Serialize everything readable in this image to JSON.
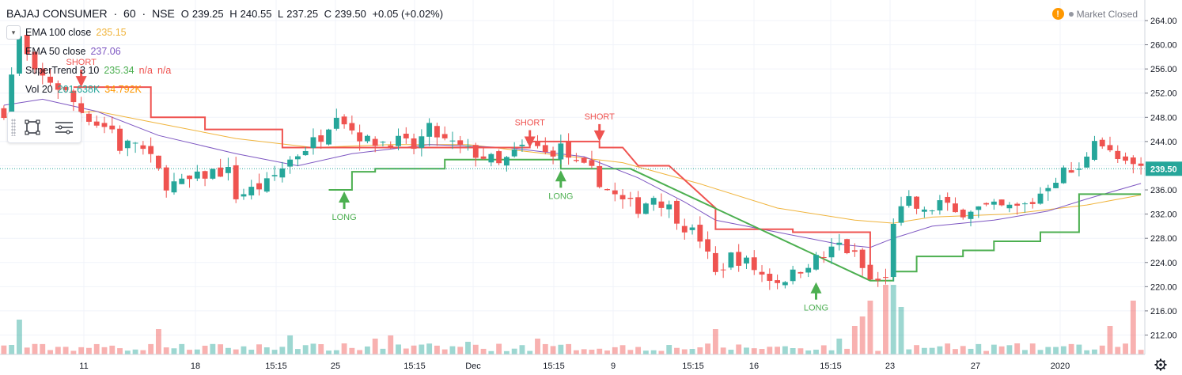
{
  "header": {
    "symbol": "BAJAJ CONSUMER",
    "interval": "60",
    "exchange": "NSE",
    "sep": "·",
    "open_label": "O",
    "open": "239.25",
    "high_label": "H",
    "high": "240.55",
    "low_label": "L",
    "low": "237.25",
    "close_label": "C",
    "close": "239.50",
    "change": "+0.05 (+0.02%)"
  },
  "indicators": [
    {
      "name": "EMA 100 close",
      "values": [
        "235.15"
      ],
      "colors": [
        "#f0b43c"
      ]
    },
    {
      "name": "EMA 50 close",
      "values": [
        "237.06"
      ],
      "colors": [
        "#7e57c2"
      ]
    },
    {
      "name": "SuperTrend 3 10",
      "values": [
        "235.34",
        "n/a",
        "n/a"
      ],
      "colors": [
        "#4caf50",
        "#ef5350",
        "#ef5350"
      ]
    },
    {
      "name": "Vol 20",
      "values": [
        "201.638K",
        "34.792K"
      ],
      "colors": [
        "#26a69a",
        "#ff9800"
      ]
    }
  ],
  "status": {
    "icon": "warning-icon",
    "label": "Market Closed"
  },
  "toolbar": {
    "items": [
      {
        "icon": "rectangle-icon"
      },
      {
        "icon": "lines-icon"
      }
    ]
  },
  "chart_data": {
    "type": "candlestick",
    "title": "BAJAJ CONSUMER · 60 · NSE",
    "ylim": [
      212,
      265
    ],
    "yticks": [
      "264.00",
      "260.00",
      "256.00",
      "252.00",
      "248.00",
      "244.00",
      "236.00",
      "232.00",
      "228.00",
      "224.00",
      "220.00",
      "216.00",
      "212.00"
    ],
    "last_price": "239.50",
    "xticks": [
      "11",
      "18",
      "15:15",
      "25",
      "15:15",
      "Dec",
      "15:15",
      "9",
      "15:15",
      "16",
      "15:15",
      "23",
      "27",
      "2020"
    ],
    "price_path": [
      [
        0,
        249
      ],
      [
        2,
        261
      ],
      [
        4,
        255
      ],
      [
        6,
        254
      ],
      [
        8,
        252
      ],
      [
        10,
        249
      ],
      [
        12,
        247
      ],
      [
        14,
        246
      ],
      [
        15,
        243
      ],
      [
        17,
        244
      ],
      [
        19,
        241
      ],
      [
        21,
        237
      ],
      [
        23,
        237
      ],
      [
        25,
        238
      ],
      [
        27,
        239
      ],
      [
        29,
        239
      ],
      [
        30,
        235
      ],
      [
        32,
        236
      ],
      [
        34,
        237
      ],
      [
        37,
        241
      ],
      [
        39,
        243
      ],
      [
        41,
        245
      ],
      [
        43,
        249
      ],
      [
        45,
        246
      ],
      [
        47,
        244
      ],
      [
        49,
        244
      ],
      [
        51,
        244
      ],
      [
        53,
        243
      ],
      [
        55,
        246
      ],
      [
        57,
        244
      ],
      [
        59,
        243
      ],
      [
        61,
        242
      ],
      [
        63,
        241
      ],
      [
        64,
        240
      ],
      [
        66,
        242
      ],
      [
        68,
        244
      ],
      [
        70,
        242
      ],
      [
        72,
        243
      ],
      [
        74,
        240
      ],
      [
        76,
        239
      ],
      [
        78,
        236
      ],
      [
        80,
        234
      ],
      [
        82,
        233
      ],
      [
        84,
        235
      ],
      [
        86,
        233
      ],
      [
        88,
        230
      ],
      [
        90,
        228
      ],
      [
        92,
        222
      ],
      [
        94,
        225
      ],
      [
        96,
        224
      ],
      [
        98,
        222
      ],
      [
        100,
        221
      ],
      [
        102,
        222
      ],
      [
        104,
        224
      ],
      [
        106,
        225
      ],
      [
        108,
        227
      ],
      [
        110,
        225
      ],
      [
        112,
        221
      ],
      [
        114,
        221
      ],
      [
        115,
        231
      ],
      [
        117,
        234
      ],
      [
        119,
        232
      ],
      [
        121,
        234
      ],
      [
        123,
        232
      ],
      [
        125,
        233
      ],
      [
        127,
        233
      ],
      [
        129,
        233
      ],
      [
        131,
        233
      ],
      [
        133,
        234
      ],
      [
        135,
        237
      ],
      [
        137,
        239
      ],
      [
        139,
        239
      ],
      [
        141,
        245
      ],
      [
        143,
        242
      ],
      [
        145,
        240
      ],
      [
        147,
        239.5
      ]
    ],
    "ema100": [
      [
        0,
        248
      ],
      [
        12,
        249
      ],
      [
        20,
        247
      ],
      [
        30,
        244.5
      ],
      [
        40,
        243
      ],
      [
        50,
        243.5
      ],
      [
        60,
        243.5
      ],
      [
        70,
        242
      ],
      [
        80,
        240.5
      ],
      [
        90,
        237
      ],
      [
        100,
        233
      ],
      [
        110,
        231
      ],
      [
        115,
        230.5
      ],
      [
        120,
        231.5
      ],
      [
        130,
        232
      ],
      [
        140,
        233.5
      ],
      [
        147,
        235.15
      ]
    ],
    "ema50": [
      [
        0,
        250
      ],
      [
        5,
        251
      ],
      [
        12,
        249
      ],
      [
        20,
        245
      ],
      [
        30,
        242
      ],
      [
        38,
        240
      ],
      [
        45,
        242
      ],
      [
        55,
        243.5
      ],
      [
        65,
        243
      ],
      [
        75,
        241.5
      ],
      [
        82,
        238
      ],
      [
        88,
        234
      ],
      [
        92,
        231
      ],
      [
        100,
        229
      ],
      [
        108,
        227
      ],
      [
        112,
        226.5
      ],
      [
        115,
        228
      ],
      [
        120,
        230
      ],
      [
        128,
        231
      ],
      [
        135,
        232.5
      ],
      [
        140,
        234.5
      ],
      [
        147,
        237.06
      ]
    ],
    "supertrend_red": [
      [
        9,
        253
      ],
      [
        19,
        253
      ],
      [
        19,
        248
      ],
      [
        26,
        248
      ],
      [
        26,
        246
      ],
      [
        36,
        246
      ],
      [
        36,
        243
      ],
      [
        42,
        243
      ],
      [
        68,
        243
      ],
      [
        68,
        244
      ],
      [
        77,
        244
      ],
      [
        77,
        243
      ],
      [
        80,
        243
      ],
      [
        82,
        240
      ],
      [
        86,
        240
      ],
      [
        92,
        233
      ],
      [
        92,
        229.5
      ],
      [
        102,
        229.5
      ],
      [
        102,
        229
      ],
      [
        112,
        229
      ],
      [
        112,
        221
      ]
    ],
    "supertrend_green": [
      [
        42,
        236
      ],
      [
        45,
        236
      ],
      [
        45,
        239
      ],
      [
        48,
        239
      ],
      [
        48,
        239.5
      ],
      [
        57,
        239.5
      ],
      [
        57,
        241
      ],
      [
        68,
        241
      ],
      [
        72,
        241
      ],
      [
        72,
        239.5
      ],
      [
        81,
        239.5
      ],
      [
        112,
        221
      ],
      [
        115,
        221
      ],
      [
        115,
        222.5
      ],
      [
        118,
        222.5
      ],
      [
        118,
        225
      ],
      [
        124,
        225
      ],
      [
        124,
        226
      ],
      [
        128,
        226
      ],
      [
        128,
        227.5
      ],
      [
        134,
        227.5
      ],
      [
        134,
        229
      ],
      [
        139,
        229
      ],
      [
        139,
        235.3
      ],
      [
        147,
        235.3
      ]
    ],
    "signals": [
      {
        "label": "SHORT",
        "type": "short",
        "x": 10,
        "y": 253
      },
      {
        "label": "LONG",
        "type": "long",
        "x": 44,
        "y": 236
      },
      {
        "label": "SHORT",
        "type": "short",
        "x": 68,
        "y": 243
      },
      {
        "label": "LONG",
        "type": "long",
        "x": 72,
        "y": 239.5
      },
      {
        "label": "SHORT",
        "type": "short",
        "x": 77,
        "y": 244
      },
      {
        "label": "LONG",
        "type": "long",
        "x": 105,
        "y": 221
      }
    ],
    "volume_spikes": [
      [
        1,
        3
      ],
      [
        2,
        11
      ],
      [
        20,
        8
      ],
      [
        37,
        6
      ],
      [
        48,
        5
      ],
      [
        50,
        6
      ],
      [
        60,
        4
      ],
      [
        69,
        5
      ],
      [
        92,
        8
      ],
      [
        108,
        5
      ],
      [
        110,
        9
      ],
      [
        111,
        12
      ],
      [
        112,
        17
      ],
      [
        114,
        22
      ],
      [
        115,
        22
      ],
      [
        116,
        15
      ],
      [
        143,
        9
      ],
      [
        146,
        17
      ]
    ]
  }
}
